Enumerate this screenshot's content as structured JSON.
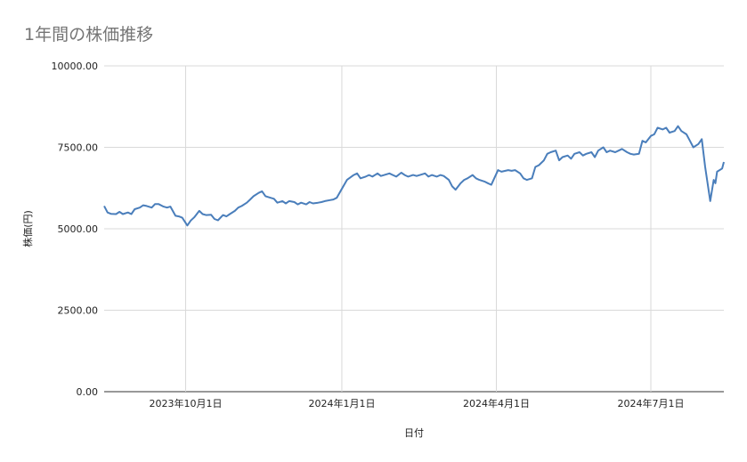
{
  "chart_data": {
    "type": "line",
    "title": "1年間の株価推移",
    "xlabel": "日付",
    "ylabel": "株価(円)",
    "ylim": [
      0,
      10000
    ],
    "xlim": [
      "2023-08-14",
      "2024-08-13"
    ],
    "y_ticks": [
      "0.00",
      "2500.00",
      "5000.00",
      "7500.00",
      "10000.00"
    ],
    "x_ticks": [
      {
        "date": "2023-10-01",
        "label": "2023年10月1日"
      },
      {
        "date": "2024-01-01",
        "label": "2024年1月1日"
      },
      {
        "date": "2024-04-01",
        "label": "2024年4月1日"
      },
      {
        "date": "2024-07-01",
        "label": "2024年7月1日"
      }
    ],
    "grid": true,
    "series": [
      {
        "color": "#4a7ebb",
        "points": [
          [
            "2023-08-14",
            5700
          ],
          [
            "2023-08-16",
            5500
          ],
          [
            "2023-08-18",
            5460
          ],
          [
            "2023-08-21",
            5450
          ],
          [
            "2023-08-23",
            5520
          ],
          [
            "2023-08-25",
            5450
          ],
          [
            "2023-08-28",
            5500
          ],
          [
            "2023-08-30",
            5450
          ],
          [
            "2023-09-01",
            5600
          ],
          [
            "2023-09-04",
            5650
          ],
          [
            "2023-09-06",
            5720
          ],
          [
            "2023-09-08",
            5700
          ],
          [
            "2023-09-11",
            5650
          ],
          [
            "2023-09-13",
            5760
          ],
          [
            "2023-09-15",
            5760
          ],
          [
            "2023-09-18",
            5680
          ],
          [
            "2023-09-20",
            5650
          ],
          [
            "2023-09-22",
            5680
          ],
          [
            "2023-09-25",
            5400
          ],
          [
            "2023-09-27",
            5380
          ],
          [
            "2023-09-29",
            5340
          ],
          [
            "2023-10-02",
            5100
          ],
          [
            "2023-10-04",
            5250
          ],
          [
            "2023-10-06",
            5350
          ],
          [
            "2023-10-09",
            5550
          ],
          [
            "2023-10-11",
            5450
          ],
          [
            "2023-10-13",
            5420
          ],
          [
            "2023-10-16",
            5430
          ],
          [
            "2023-10-18",
            5300
          ],
          [
            "2023-10-20",
            5260
          ],
          [
            "2023-10-23",
            5420
          ],
          [
            "2023-10-25",
            5380
          ],
          [
            "2023-10-27",
            5450
          ],
          [
            "2023-10-30",
            5550
          ],
          [
            "2023-11-01",
            5650
          ],
          [
            "2023-11-03",
            5700
          ],
          [
            "2023-11-06",
            5800
          ],
          [
            "2023-11-08",
            5900
          ],
          [
            "2023-11-10",
            6000
          ],
          [
            "2023-11-13",
            6100
          ],
          [
            "2023-11-15",
            6150
          ],
          [
            "2023-11-17",
            6000
          ],
          [
            "2023-11-20",
            5950
          ],
          [
            "2023-11-22",
            5920
          ],
          [
            "2023-11-24",
            5800
          ],
          [
            "2023-11-27",
            5850
          ],
          [
            "2023-11-29",
            5780
          ],
          [
            "2023-12-01",
            5850
          ],
          [
            "2023-12-04",
            5820
          ],
          [
            "2023-12-06",
            5750
          ],
          [
            "2023-12-08",
            5800
          ],
          [
            "2023-12-11",
            5750
          ],
          [
            "2023-12-13",
            5820
          ],
          [
            "2023-12-15",
            5780
          ],
          [
            "2023-12-18",
            5800
          ],
          [
            "2023-12-20",
            5820
          ],
          [
            "2023-12-22",
            5850
          ],
          [
            "2023-12-25",
            5880
          ],
          [
            "2023-12-27",
            5900
          ],
          [
            "2023-12-29",
            5950
          ],
          [
            "2024-01-04",
            6500
          ],
          [
            "2024-01-08",
            6650
          ],
          [
            "2024-01-10",
            6700
          ],
          [
            "2024-01-12",
            6550
          ],
          [
            "2024-01-15",
            6600
          ],
          [
            "2024-01-17",
            6650
          ],
          [
            "2024-01-19",
            6600
          ],
          [
            "2024-01-22",
            6700
          ],
          [
            "2024-01-24",
            6620
          ],
          [
            "2024-01-26",
            6650
          ],
          [
            "2024-01-29",
            6700
          ],
          [
            "2024-01-31",
            6650
          ],
          [
            "2024-02-02",
            6600
          ],
          [
            "2024-02-05",
            6720
          ],
          [
            "2024-02-07",
            6650
          ],
          [
            "2024-02-09",
            6600
          ],
          [
            "2024-02-12",
            6650
          ],
          [
            "2024-02-14",
            6620
          ],
          [
            "2024-02-16",
            6650
          ],
          [
            "2024-02-19",
            6700
          ],
          [
            "2024-02-21",
            6600
          ],
          [
            "2024-02-23",
            6650
          ],
          [
            "2024-02-26",
            6600
          ],
          [
            "2024-02-28",
            6650
          ],
          [
            "2024-03-01",
            6620
          ],
          [
            "2024-03-04",
            6500
          ],
          [
            "2024-03-06",
            6300
          ],
          [
            "2024-03-08",
            6200
          ],
          [
            "2024-03-11",
            6400
          ],
          [
            "2024-03-13",
            6500
          ],
          [
            "2024-03-15",
            6550
          ],
          [
            "2024-03-18",
            6650
          ],
          [
            "2024-03-20",
            6550
          ],
          [
            "2024-03-22",
            6500
          ],
          [
            "2024-03-25",
            6450
          ],
          [
            "2024-03-27",
            6400
          ],
          [
            "2024-03-29",
            6350
          ],
          [
            "2024-04-02",
            6800
          ],
          [
            "2024-04-04",
            6750
          ],
          [
            "2024-04-08",
            6800
          ],
          [
            "2024-04-10",
            6780
          ],
          [
            "2024-04-12",
            6800
          ],
          [
            "2024-04-15",
            6700
          ],
          [
            "2024-04-17",
            6550
          ],
          [
            "2024-04-19",
            6500
          ],
          [
            "2024-04-22",
            6550
          ],
          [
            "2024-04-24",
            6900
          ],
          [
            "2024-04-26",
            6950
          ],
          [
            "2024-04-29",
            7100
          ],
          [
            "2024-05-01",
            7300
          ],
          [
            "2024-05-03",
            7350
          ],
          [
            "2024-05-06",
            7400
          ],
          [
            "2024-05-08",
            7100
          ],
          [
            "2024-05-10",
            7200
          ],
          [
            "2024-05-13",
            7250
          ],
          [
            "2024-05-15",
            7150
          ],
          [
            "2024-05-17",
            7300
          ],
          [
            "2024-05-20",
            7350
          ],
          [
            "2024-05-22",
            7250
          ],
          [
            "2024-05-24",
            7300
          ],
          [
            "2024-05-27",
            7350
          ],
          [
            "2024-05-29",
            7200
          ],
          [
            "2024-05-31",
            7400
          ],
          [
            "2024-06-03",
            7500
          ],
          [
            "2024-06-05",
            7350
          ],
          [
            "2024-06-07",
            7400
          ],
          [
            "2024-06-10",
            7350
          ],
          [
            "2024-06-12",
            7400
          ],
          [
            "2024-06-14",
            7450
          ],
          [
            "2024-06-17",
            7350
          ],
          [
            "2024-06-19",
            7300
          ],
          [
            "2024-06-21",
            7280
          ],
          [
            "2024-06-24",
            7300
          ],
          [
            "2024-06-26",
            7700
          ],
          [
            "2024-06-28",
            7650
          ],
          [
            "2024-07-01",
            7850
          ],
          [
            "2024-07-03",
            7900
          ],
          [
            "2024-07-05",
            8100
          ],
          [
            "2024-07-08",
            8050
          ],
          [
            "2024-07-10",
            8100
          ],
          [
            "2024-07-12",
            7950
          ],
          [
            "2024-07-15",
            8000
          ],
          [
            "2024-07-17",
            8150
          ],
          [
            "2024-07-19",
            8000
          ],
          [
            "2024-07-22",
            7900
          ],
          [
            "2024-07-24",
            7700
          ],
          [
            "2024-07-26",
            7500
          ],
          [
            "2024-07-29",
            7600
          ],
          [
            "2024-07-31",
            7750
          ],
          [
            "2024-08-02",
            6900
          ],
          [
            "2024-08-05",
            5850
          ],
          [
            "2024-08-07",
            6500
          ],
          [
            "2024-08-08",
            6400
          ],
          [
            "2024-08-09",
            6750
          ],
          [
            "2024-08-12",
            6850
          ],
          [
            "2024-08-13",
            7050
          ]
        ]
      }
    ]
  }
}
